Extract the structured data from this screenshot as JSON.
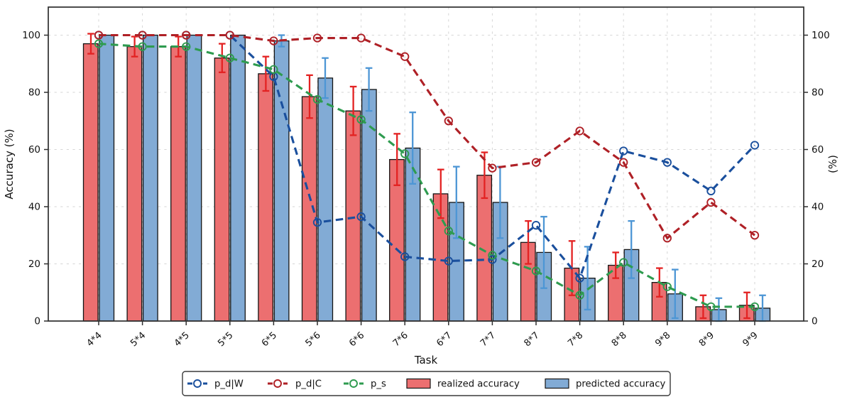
{
  "figure": {
    "xlabel": "Task",
    "ylabel_left": "Accuracy (%)",
    "ylabel_right": "(%)",
    "y_ticks": [
      0,
      20,
      40,
      60,
      80,
      100
    ]
  },
  "chart_data": {
    "type": "bar",
    "subtype": "grouped-bars-with-dashed-line-overlays",
    "title": "",
    "xlabel": "Task",
    "ylabel": "Accuracy (%)",
    "ylabel_right": "(%)",
    "ylim": [
      0,
      110
    ],
    "grid": true,
    "legend_position": "bottom-center",
    "categories": [
      "4*4",
      "5*4",
      "4*5",
      "5*5",
      "6*5",
      "5*6",
      "6*6",
      "7*6",
      "6*7",
      "7*7",
      "8*7",
      "7*8",
      "8*8",
      "9*8",
      "8*9",
      "9*9"
    ],
    "bar_series": [
      {
        "name": "realized accuracy",
        "values": [
          97,
          96,
          96,
          92,
          86.5,
          78.5,
          73.5,
          56.5,
          44.5,
          51,
          27.5,
          18.5,
          19.5,
          13.5,
          5,
          5.5
        ],
        "errors": [
          3.5,
          3.5,
          3.5,
          5,
          6,
          7.5,
          8.5,
          9,
          8.5,
          8,
          7.5,
          9.5,
          4.5,
          5,
          4,
          4.5
        ],
        "fill": "#EC6F70",
        "error_color": "#E32222"
      },
      {
        "name": "predicted accuracy",
        "values": [
          100,
          100,
          100,
          100,
          98,
          85,
          81,
          60.5,
          41.5,
          41.5,
          24,
          15,
          25,
          9.5,
          4,
          4.5
        ],
        "errors": [
          0,
          0,
          0,
          0,
          2,
          7,
          7.5,
          12.5,
          12.5,
          12.5,
          12.5,
          11,
          10,
          8.5,
          4,
          4.5
        ],
        "fill": "#82ABD5",
        "error_color": "#4D96D5"
      }
    ],
    "line_series": [
      {
        "name": "p_d|W",
        "values": [
          100,
          100,
          100,
          100,
          85.5,
          34.5,
          36.5,
          22.5,
          21,
          21.5,
          33.5,
          15,
          59.5,
          55.5,
          45.5,
          61.5
        ],
        "color": "#1A4F9D"
      },
      {
        "name": "p_d|C",
        "values": [
          100,
          100,
          100,
          100,
          98,
          99,
          99,
          92.5,
          70,
          53.5,
          55.5,
          66.5,
          55.5,
          29,
          41.5,
          30
        ],
        "color": "#AF2026"
      },
      {
        "name": "p_s",
        "values": [
          97,
          96,
          96,
          92,
          88,
          77.5,
          70.5,
          58.5,
          31.5,
          23,
          17.5,
          9,
          20.5,
          12,
          5,
          5
        ],
        "color": "#2E9B4F"
      }
    ]
  },
  "style": {
    "bar_edge": "#141414",
    "grid_color": "#D6D6D6",
    "spine_color": "#2E2E2E",
    "text_color": "#111111",
    "legend_border": "#3A3A3A",
    "background": "#FFFFFF"
  }
}
